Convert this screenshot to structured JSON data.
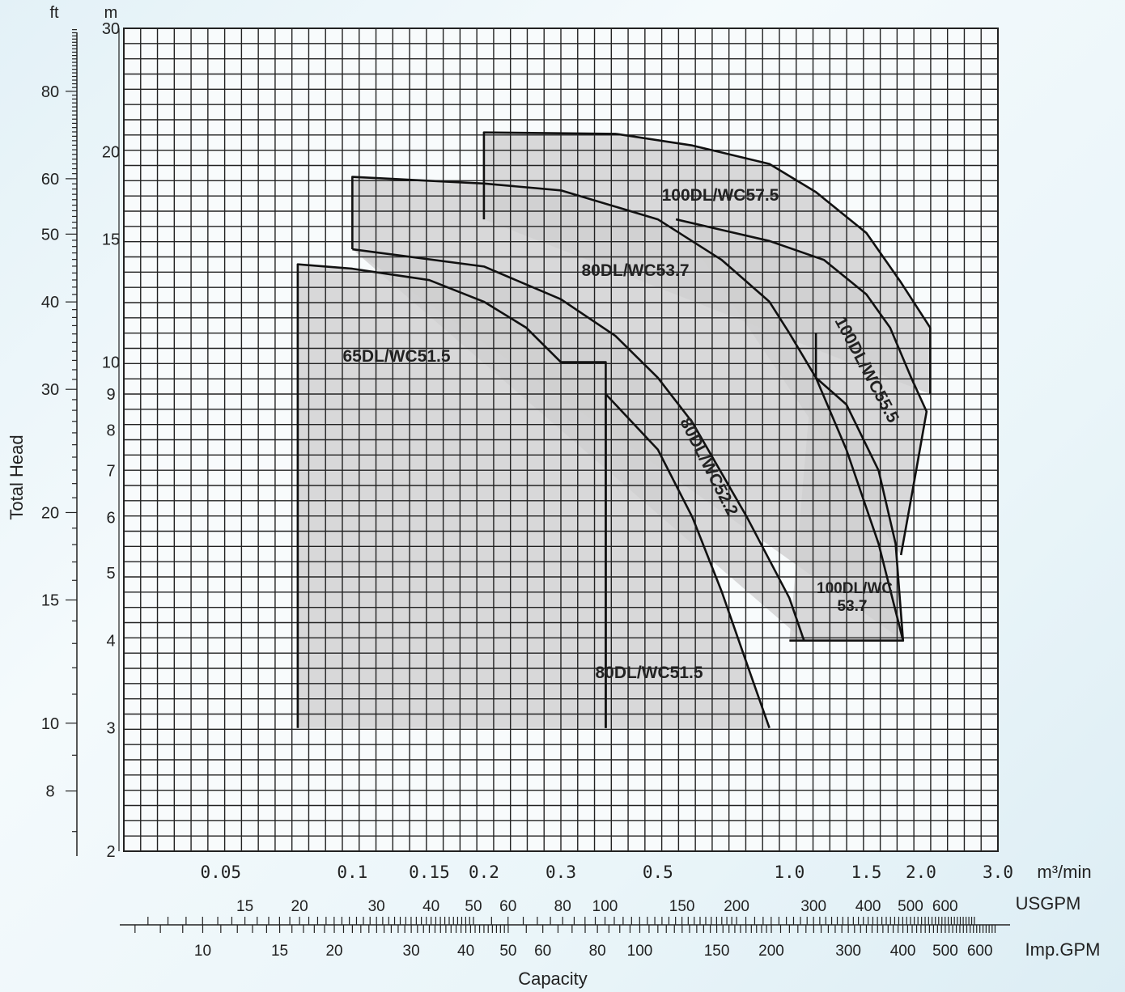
{
  "chart_data": {
    "type": "area",
    "x_scale": "log",
    "y_scale": "log",
    "xlim": [
      0.03,
      3.0
    ],
    "ylim": [
      2,
      30
    ],
    "xlabel": "Capacity",
    "ylabel": "Total Head",
    "y_unit_m": "m",
    "y_unit_ft": "ft",
    "x_unit_m3": "m³/min",
    "x_unit_usgpm": "USGPM",
    "x_unit_impgpm": "Imp.GPM",
    "y_ticks_m": [
      "2",
      "3",
      "4",
      "5",
      "6",
      "7",
      "8",
      "9",
      "10",
      "15",
      "20",
      "30"
    ],
    "y_ticks_ft": [
      "8",
      "10",
      "15",
      "20",
      "30",
      "40",
      "50",
      "60",
      "80"
    ],
    "x_ticks_m3": [
      "0.05",
      "0.1",
      "0.15",
      "0.2",
      "0.3",
      "0.5",
      "1.0",
      "1.5",
      "2.0",
      "3.0"
    ],
    "x_ticks_usgpm": [
      "15",
      "20",
      "30",
      "40",
      "50",
      "60",
      "80",
      "100",
      "150",
      "200",
      "300",
      "400",
      "500",
      "600"
    ],
    "x_ticks_impgpm": [
      "10",
      "15",
      "20",
      "30",
      "40",
      "50",
      "60",
      "80",
      "100",
      "150",
      "200",
      "300",
      "400",
      "500",
      "600"
    ],
    "regions": [
      {
        "name": "65DL/WC51.5",
        "boundary": [
          [
            0.075,
            3
          ],
          [
            0.075,
            13.8
          ],
          [
            0.1,
            13.6
          ],
          [
            0.15,
            13.1
          ],
          [
            0.2,
            12.2
          ],
          [
            0.25,
            11.2
          ],
          [
            0.3,
            10.0
          ],
          [
            0.38,
            10.0
          ],
          [
            0.38,
            3
          ]
        ]
      },
      {
        "name": "80DL/WC51.5",
        "boundary": [
          [
            0.38,
            3
          ],
          [
            0.38,
            9.0
          ],
          [
            0.5,
            7.5
          ],
          [
            0.6,
            6.0
          ],
          [
            0.7,
            4.7
          ],
          [
            0.8,
            3.7
          ],
          [
            0.9,
            3.0
          ]
        ]
      },
      {
        "name": "80DL/WC52.2",
        "boundary": [
          [
            0.1,
            14.5
          ],
          [
            0.2,
            13.7
          ],
          [
            0.3,
            12.3
          ],
          [
            0.4,
            10.9
          ],
          [
            0.5,
            9.5
          ],
          [
            0.6,
            8.2
          ],
          [
            0.8,
            6.0
          ],
          [
            1.0,
            4.6
          ],
          [
            1.08,
            4.0
          ]
        ]
      },
      {
        "name": "80DL/WC53.7",
        "boundary": [
          [
            0.1,
            14.5
          ],
          [
            0.1,
            18.4
          ],
          [
            0.2,
            18.0
          ],
          [
            0.3,
            17.6
          ],
          [
            0.5,
            16.0
          ],
          [
            0.7,
            14.0
          ],
          [
            0.9,
            12.2
          ],
          [
            1.0,
            11.0
          ],
          [
            1.15,
            9.5
          ],
          [
            1.35,
            7.5
          ],
          [
            1.6,
            5.5
          ],
          [
            1.82,
            4.0
          ]
        ]
      },
      {
        "name": "100DL/WC55.5",
        "boundary": [
          [
            0.55,
            16.0
          ],
          [
            0.9,
            14.9
          ],
          [
            1.2,
            14.0
          ],
          [
            1.5,
            12.5
          ],
          [
            1.7,
            11.2
          ],
          [
            1.9,
            9.5
          ],
          [
            2.06,
            8.5
          ],
          [
            1.95,
            7.0
          ],
          [
            1.8,
            5.3
          ]
        ]
      },
      {
        "name": "100DL/WC57.5",
        "boundary": [
          [
            0.2,
            16.0
          ],
          [
            0.2,
            21.3
          ],
          [
            0.4,
            21.2
          ],
          [
            0.6,
            20.4
          ],
          [
            0.9,
            19.2
          ],
          [
            1.15,
            17.5
          ],
          [
            1.5,
            15.3
          ],
          [
            1.8,
            13.0
          ],
          [
            2.1,
            11.2
          ],
          [
            2.1,
            9.0
          ]
        ]
      },
      {
        "name": "100DL/WC53.7",
        "boundary": [
          [
            1.0,
            4.0
          ],
          [
            1.82,
            4.0
          ],
          [
            1.75,
            5.5
          ],
          [
            1.6,
            7.0
          ],
          [
            1.35,
            8.7
          ],
          [
            1.15,
            9.5
          ],
          [
            1.15,
            11.0
          ]
        ]
      }
    ],
    "annotations": [
      "100DL/WC57.5",
      "80DL/WC53.7",
      "100DL/WC55.5",
      "65DL/WC51.5",
      "80DL/WC52.2",
      "100DL/WC",
      "53.7",
      "80DL/WC51.5"
    ]
  }
}
